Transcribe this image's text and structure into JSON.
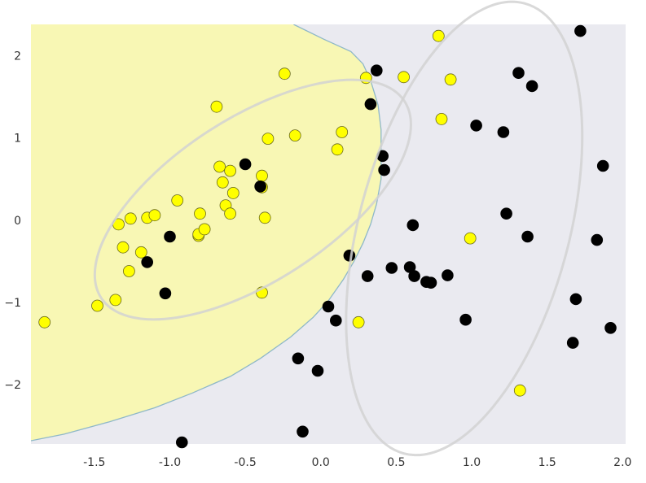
{
  "chart_data": {
    "type": "scatter",
    "title": "",
    "xlabel": "",
    "ylabel": "",
    "xlim": [
      -1.92,
      2.02
    ],
    "ylim": [
      -2.72,
      2.38
    ],
    "x_ticks": [
      "-1.5",
      "-1.0",
      "-0.5",
      "0.0",
      "0.5",
      "1.0",
      "1.5",
      "2.0"
    ],
    "y_ticks": [
      "2",
      "1",
      "0",
      "−1",
      "−2"
    ],
    "x_tick_values": [
      -1.5,
      -1.0,
      -0.5,
      0.0,
      0.5,
      1.0,
      1.5,
      2.0
    ],
    "y_tick_values": [
      2,
      1,
      0,
      -1,
      -2
    ],
    "grid": false,
    "colors": {
      "yellow_region": "#f8f7b4",
      "gray_region": "#eaeaf0",
      "boundary": "#8fb8c8",
      "ellipse": "#d2d2d2",
      "class_yellow": "#ffff00",
      "class_black": "#000000",
      "marker_edge": "#6a6a1e"
    },
    "decision_boundary": [
      [
        -1.92,
        -2.68
      ],
      [
        -1.7,
        -2.6
      ],
      [
        -1.4,
        -2.45
      ],
      [
        -1.1,
        -2.28
      ],
      [
        -0.85,
        -2.1
      ],
      [
        -0.6,
        -1.9
      ],
      [
        -0.4,
        -1.68
      ],
      [
        -0.2,
        -1.42
      ],
      [
        -0.05,
        -1.18
      ],
      [
        0.05,
        -0.98
      ],
      [
        0.15,
        -0.72
      ],
      [
        0.22,
        -0.5
      ],
      [
        0.28,
        -0.28
      ],
      [
        0.33,
        -0.05
      ],
      [
        0.37,
        0.2
      ],
      [
        0.4,
        0.5
      ],
      [
        0.4,
        0.8
      ],
      [
        0.4,
        1.1
      ],
      [
        0.38,
        1.4
      ],
      [
        0.33,
        1.7
      ],
      [
        0.28,
        1.9
      ],
      [
        0.2,
        2.05
      ],
      [
        0.02,
        2.2
      ],
      [
        -0.18,
        2.38
      ]
    ],
    "ellipses": [
      {
        "cx": -0.45,
        "cy": 0.25,
        "rx": 1.55,
        "ry": 0.7,
        "angle_deg": 33
      },
      {
        "cx": 0.95,
        "cy": -0.1,
        "rx": 2.0,
        "ry": 0.9,
        "angle_deg": 75
      }
    ],
    "series": [
      {
        "class": "yellow",
        "x": [
          -1.83,
          -1.48,
          -1.36,
          -1.34,
          -1.31,
          -1.27,
          -1.26,
          -1.19,
          -1.15,
          -1.1,
          -0.95,
          -0.81,
          -0.81,
          -0.8,
          -0.77,
          -0.69,
          -0.67,
          -0.65,
          -0.63,
          -0.6,
          -0.6,
          -0.58,
          -0.39,
          -0.39,
          -0.39,
          -0.37,
          -0.35,
          -0.24,
          -0.17,
          0.11,
          0.14,
          0.25,
          0.3,
          0.55,
          0.78,
          0.8,
          0.86,
          0.99,
          1.32
        ],
        "y": [
          -1.24,
          -1.04,
          -0.97,
          -0.05,
          -0.33,
          -0.62,
          0.02,
          -0.39,
          0.03,
          0.06,
          0.24,
          -0.19,
          -0.17,
          0.08,
          -0.11,
          1.38,
          0.65,
          0.46,
          0.18,
          0.6,
          0.08,
          0.33,
          0.4,
          0.54,
          -0.88,
          0.03,
          0.99,
          1.78,
          1.03,
          0.86,
          1.07,
          -1.24,
          1.73,
          1.74,
          2.24,
          1.23,
          1.71,
          -0.22,
          -2.07
        ]
      },
      {
        "class": "black",
        "x": [
          -1.15,
          -1.03,
          -1.0,
          -0.92,
          -0.5,
          -0.4,
          -0.15,
          -0.12,
          -0.02,
          0.05,
          0.1,
          0.19,
          0.31,
          0.33,
          0.37,
          0.41,
          0.42,
          0.47,
          0.59,
          0.61,
          0.62,
          0.7,
          0.73,
          0.84,
          0.96,
          1.03,
          1.21,
          1.23,
          1.31,
          1.37,
          1.4,
          1.67,
          1.69,
          1.72,
          1.83,
          1.87,
          1.92
        ],
        "y": [
          -0.51,
          -0.89,
          -0.2,
          -2.7,
          0.68,
          0.41,
          -1.68,
          -2.57,
          -1.83,
          -1.05,
          -1.22,
          -0.43,
          -0.68,
          1.41,
          1.82,
          0.78,
          0.61,
          -0.58,
          -0.57,
          -0.06,
          -0.68,
          -0.75,
          -0.76,
          -0.67,
          -1.21,
          1.15,
          1.07,
          0.08,
          1.79,
          -0.2,
          1.63,
          -1.49,
          -0.96,
          2.3,
          -0.24,
          0.66,
          -1.31
        ]
      }
    ]
  }
}
